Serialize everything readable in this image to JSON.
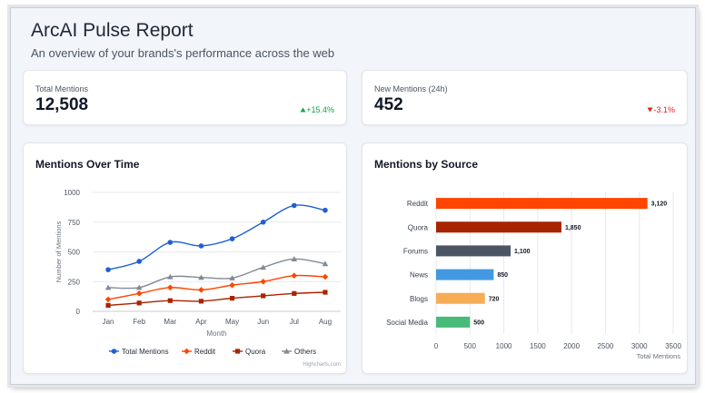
{
  "header": {
    "title": "ArcAI Pulse Report",
    "subtitle": "An overview of your brands's performance across the web"
  },
  "kpis": {
    "total": {
      "label": "Total Mentions",
      "value": "12,508",
      "delta": "+15.4%",
      "direction": "up"
    },
    "new": {
      "label": "New Mentions (24h)",
      "value": "452",
      "delta": "-3.1%",
      "direction": "down"
    }
  },
  "cards": {
    "line_title": "Mentions Over Time",
    "bar_title": "Mentions by Source"
  },
  "credit": "Highcharts.com",
  "colors": {
    "total": "#1f5fd6",
    "reddit": "#ff4500",
    "quora": "#a82400",
    "others": "#808a96",
    "up": "#16a34a",
    "down": "#dc2626"
  },
  "chart_data": [
    {
      "type": "line",
      "title": "Mentions Over Time",
      "xlabel": "Month",
      "ylabel": "Number of Mentions",
      "categories": [
        "Jan",
        "Feb",
        "Mar",
        "Apr",
        "May",
        "Jun",
        "Jul",
        "Aug"
      ],
      "ylim": [
        0,
        1000
      ],
      "yticks": [
        0,
        250,
        500,
        750,
        1000
      ],
      "legend": "bottom",
      "series": [
        {
          "name": "Total Mentions",
          "color": "#1f5fd6",
          "marker": "circle",
          "values": [
            350,
            420,
            580,
            550,
            610,
            750,
            890,
            850
          ]
        },
        {
          "name": "Reddit",
          "color": "#ff4500",
          "marker": "diamond",
          "values": [
            100,
            150,
            200,
            180,
            220,
            250,
            300,
            290
          ]
        },
        {
          "name": "Quora",
          "color": "#a82400",
          "marker": "square",
          "values": [
            50,
            70,
            90,
            85,
            110,
            130,
            150,
            160
          ]
        },
        {
          "name": "Others",
          "color": "#808a96",
          "marker": "triangle",
          "values": [
            200,
            200,
            290,
            285,
            280,
            370,
            440,
            400
          ]
        }
      ]
    },
    {
      "type": "bar",
      "orientation": "horizontal",
      "title": "Mentions by Source",
      "xlabel": "Total Mentions",
      "categories": [
        "Reddit",
        "Quora",
        "Forums",
        "News",
        "Blogs",
        "Social Media"
      ],
      "values": [
        3120,
        1850,
        1100,
        850,
        720,
        500
      ],
      "value_labels": [
        "3,120",
        "1,850",
        "1,100",
        "850",
        "720",
        "500"
      ],
      "colors": [
        "#ff4500",
        "#a82400",
        "#4b5563",
        "#4299e1",
        "#f6ad55",
        "#48bb78"
      ],
      "xlim": [
        0,
        3500
      ],
      "xticks": [
        0,
        500,
        1000,
        1500,
        2000,
        2500,
        3000,
        3500
      ]
    }
  ]
}
